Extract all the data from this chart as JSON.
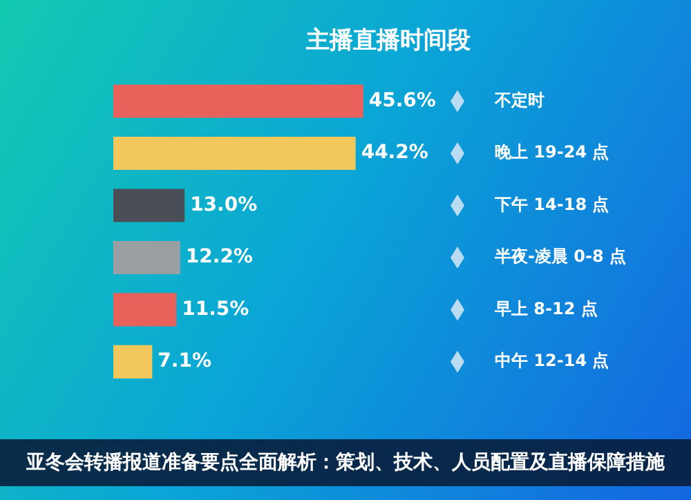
{
  "chart_data": {
    "type": "bar",
    "orientation": "horizontal",
    "title": "主播直播时间段",
    "categories": [
      "不定时",
      "晚上 19-24 点",
      "下午 14-18 点",
      "半夜-凌晨 0-8 点",
      "早上 8-12 点",
      "中午 12-14 点"
    ],
    "values": [
      45.6,
      44.2,
      13.0,
      12.2,
      11.5,
      7.1
    ],
    "colors": [
      "#e8615b",
      "#f2c75c",
      "#4a4f57",
      "#9a9fa3",
      "#e8615b",
      "#f2c75c"
    ],
    "value_labels": [
      "45.6%",
      "44.2%",
      "13.0%",
      "12.2%",
      "11.5%",
      "7.1%"
    ],
    "annotations": [
      "亚冬会转播报道准备要点全面解析：策划、技术、人员配置及直播保障措施"
    ]
  }
}
